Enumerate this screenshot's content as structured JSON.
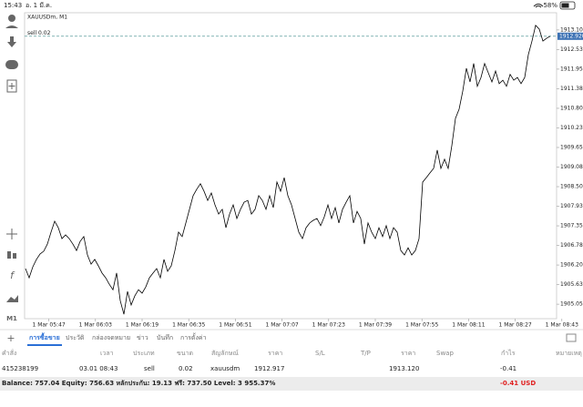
{
  "status_bar": {
    "time": "15:43",
    "date": "อ. 1 มี.ค.",
    "battery": "58%"
  },
  "toolbar": {
    "timeframe": "M1"
  },
  "chart_data": {
    "type": "line",
    "title": "XAUUSDm, M1",
    "color": "#000000",
    "price_line": {
      "label": "sell 0.02",
      "value": 1912.92,
      "value_label": "1912.920"
    },
    "x": [
      0,
      1.25,
      2.5,
      3.75,
      5,
      6.25,
      7.5,
      8.75,
      10,
      11.25,
      12.5,
      13.75,
      15,
      16.25,
      17.5,
      18.75,
      20,
      21.25,
      22.5,
      23.75,
      25,
      26.25,
      27.5,
      28.75,
      30,
      31.25,
      32.5,
      33.75,
      35,
      36.25,
      37.5,
      38.75,
      40,
      41.25,
      42.5,
      43.75,
      45,
      46.25,
      47.5,
      48.75,
      50,
      51.25,
      52.5,
      53.75,
      55,
      56.25,
      57.5,
      58.75,
      60,
      61.25,
      62.5,
      63.75,
      65,
      66.25,
      67.5,
      68.75,
      70,
      71.25,
      72.5,
      73.75,
      75,
      76.25,
      77.5,
      78.75,
      80,
      81.25,
      82.5,
      83.75,
      85,
      86.25,
      87.5,
      88.75,
      90,
      91.25,
      92.5,
      93.75,
      95,
      96.25,
      97.5,
      98.75,
      100,
      101.25,
      102.5,
      103.75,
      105,
      106.25,
      107.5,
      108.75,
      110,
      111.25,
      112.5,
      113.75,
      115,
      116.25,
      117.5,
      118.75,
      120,
      121.25,
      122.5,
      123.75,
      125,
      126.25,
      127.5,
      128.75,
      130,
      131.25,
      132.5,
      133.75,
      135,
      136.25,
      137.5,
      138.75,
      140,
      141.25,
      142.5,
      143.75,
      145,
      146.25,
      147.5,
      148.75,
      150,
      151.25,
      152.5,
      153.75,
      155,
      156.25,
      157.5,
      158.75,
      160,
      161.25,
      162.5,
      163.75,
      165,
      166.25,
      167.5,
      168.75,
      170,
      171.25,
      172.5,
      173.75,
      175,
      176.25,
      177.5,
      178.75,
      180
    ],
    "values": [
      1906.1,
      1905.83,
      1906.15,
      1906.37,
      1906.53,
      1906.61,
      1906.82,
      1907.17,
      1907.49,
      1907.3,
      1906.98,
      1907.09,
      1906.98,
      1906.82,
      1906.63,
      1906.9,
      1907.04,
      1906.5,
      1906.23,
      1906.37,
      1906.18,
      1905.97,
      1905.83,
      1905.64,
      1905.48,
      1905.97,
      1905.16,
      1904.76,
      1905.43,
      1905.03,
      1905.3,
      1905.48,
      1905.38,
      1905.56,
      1905.83,
      1905.97,
      1906.1,
      1905.83,
      1906.37,
      1906.02,
      1906.18,
      1906.63,
      1907.17,
      1907.04,
      1907.44,
      1907.84,
      1908.24,
      1908.43,
      1908.59,
      1908.37,
      1908.1,
      1908.32,
      1907.97,
      1907.7,
      1907.84,
      1907.3,
      1907.7,
      1907.97,
      1907.57,
      1907.84,
      1908.05,
      1908.1,
      1907.7,
      1907.84,
      1908.24,
      1908.1,
      1907.84,
      1908.24,
      1907.89,
      1908.64,
      1908.37,
      1908.77,
      1908.24,
      1907.97,
      1907.57,
      1907.17,
      1906.98,
      1907.3,
      1907.44,
      1907.52,
      1907.57,
      1907.36,
      1907.62,
      1907.97,
      1907.57,
      1907.89,
      1907.44,
      1907.84,
      1908.05,
      1908.24,
      1907.44,
      1907.78,
      1907.57,
      1906.82,
      1907.44,
      1907.17,
      1906.98,
      1907.3,
      1907.04,
      1907.36,
      1906.98,
      1907.3,
      1907.17,
      1906.63,
      1906.5,
      1906.71,
      1906.5,
      1906.63,
      1906.98,
      1908.64,
      1908.77,
      1908.91,
      1909.04,
      1909.58,
      1909.04,
      1909.31,
      1909.04,
      1909.71,
      1910.51,
      1910.78,
      1911.31,
      1911.98,
      1911.58,
      1912.12,
      1911.45,
      1911.71,
      1912.12,
      1911.85,
      1911.58,
      1911.9,
      1911.53,
      1911.63,
      1911.45,
      1911.8,
      1911.63,
      1911.71,
      1911.53,
      1911.71,
      1912.38,
      1912.78,
      1913.24,
      1913.13,
      1912.78,
      1912.86,
      1912.92
    ],
    "xlim": [
      0,
      184
    ],
    "xticks": [
      {
        "value": 8,
        "label": "1 Mar 05:47"
      },
      {
        "value": 24,
        "label": "1 Mar 06:03"
      },
      {
        "value": 40,
        "label": "1 Mar 06:19"
      },
      {
        "value": 56,
        "label": "1 Mar 06:35"
      },
      {
        "value": 72,
        "label": "1 Mar 06:51"
      },
      {
        "value": 88,
        "label": "1 Mar 07:07"
      },
      {
        "value": 104,
        "label": "1 Mar 07:23"
      },
      {
        "value": 120,
        "label": "1 Mar 07:39"
      },
      {
        "value": 136,
        "label": "1 Mar 07:55"
      },
      {
        "value": 152,
        "label": "1 Mar 08:11"
      },
      {
        "value": 168,
        "label": "1 Mar 08:27"
      },
      {
        "value": 184,
        "label": "1 Mar 08:43"
      }
    ],
    "ylim": [
      1904.63,
      1913.61
    ],
    "yticks": [
      {
        "value": 1913.105,
        "label": "1913.105"
      },
      {
        "value": 1912.53,
        "label": "1912.530"
      },
      {
        "value": 1911.955,
        "label": "1911.955"
      },
      {
        "value": 1911.38,
        "label": "1911.380"
      },
      {
        "value": 1910.805,
        "label": "1910.805"
      },
      {
        "value": 1910.23,
        "label": "1910.230"
      },
      {
        "value": 1909.655,
        "label": "1909.655"
      },
      {
        "value": 1909.08,
        "label": "1909.080"
      },
      {
        "value": 1908.505,
        "label": "1908.505"
      },
      {
        "value": 1907.93,
        "label": "1907.930"
      },
      {
        "value": 1907.355,
        "label": "1907.355"
      },
      {
        "value": 1906.78,
        "label": "1906.780"
      },
      {
        "value": 1906.205,
        "label": "1906.205"
      },
      {
        "value": 1905.63,
        "label": "1905.630"
      },
      {
        "value": 1905.055,
        "label": "1905.055"
      }
    ]
  },
  "tabs": [
    "การซื้อขาย",
    "ประวัติ",
    "กล่องจดหมาย",
    "ข่าว",
    "บันทึก",
    "การตั้งค่า"
  ],
  "table": {
    "header": [
      "คำสั่ง",
      "เวลา",
      "ประเภท",
      "ขนาด",
      "สัญลักษณ์",
      "ราคา",
      "S/L",
      "T/P",
      "ราคา",
      "Swap",
      "กำไร",
      "หมายเหตุ"
    ],
    "rows": [
      [
        "415238199",
        "03.01 08:43",
        "sell",
        "0.02",
        "xauusdm",
        "1912.917",
        "",
        "",
        "1913.120",
        "",
        "-0.41",
        ""
      ]
    ]
  },
  "balance": {
    "summary": "Balance: 757.04 Equity: 756.63 หลักประกัน: 19.13 ฟรี: 737.50 Level: 3 955.37%",
    "profit": "-0.41 USD"
  }
}
